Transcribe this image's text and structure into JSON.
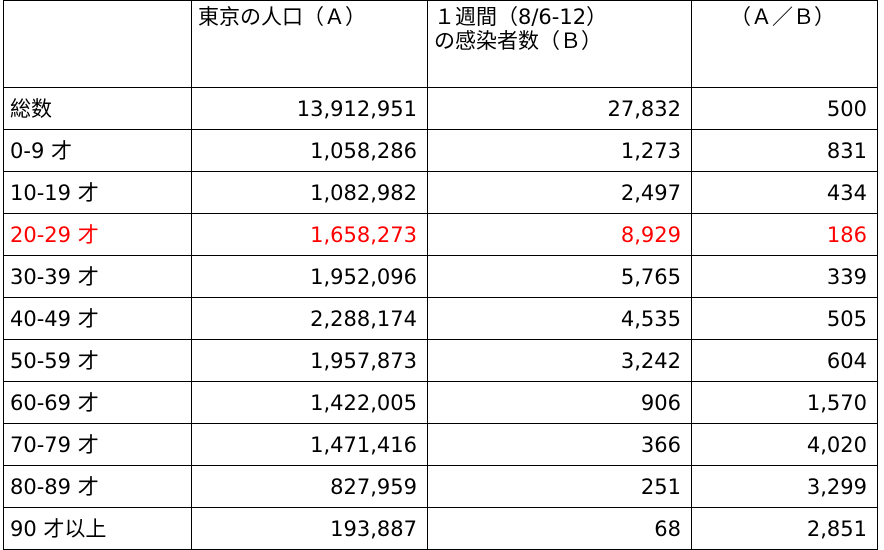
{
  "header": {
    "population": "東京の人口（Ａ）",
    "cases_line1": "１週間（8/6-12）",
    "cases_line2": "の感染者数（Ｂ）",
    "ratio": "（Ａ／Ｂ）"
  },
  "highlight_color": "#ff0000",
  "rows": [
    {
      "label": "総数",
      "population": "13,912,951",
      "cases": "27,832",
      "ratio": "500"
    },
    {
      "label": "0-9 才",
      "population": "1,058,286",
      "cases": "1,273",
      "ratio": "831"
    },
    {
      "label": "10-19 才",
      "population": "1,082,982",
      "cases": "2,497",
      "ratio": "434"
    },
    {
      "label": "20-29 才",
      "population": "1,658,273",
      "cases": "8,929",
      "ratio": "186"
    },
    {
      "label": "30-39 才",
      "population": "1,952,096",
      "cases": "5,765",
      "ratio": "339"
    },
    {
      "label": "40-49 才",
      "population": "2,288,174",
      "cases": "4,535",
      "ratio": "505"
    },
    {
      "label": "50-59 才",
      "population": "1,957,873",
      "cases": "3,242",
      "ratio": "604"
    },
    {
      "label": "60-69 才",
      "population": "1,422,005",
      "cases": "906",
      "ratio": "1,570"
    },
    {
      "label": "70-79 才",
      "population": "1,471,416",
      "cases": "366",
      "ratio": "4,020"
    },
    {
      "label": "80-89 才",
      "population": "827,959",
      "cases": "251",
      "ratio": "3,299"
    },
    {
      "label": "90 才以上",
      "population": "193,887",
      "cases": "68",
      "ratio": "2,851"
    }
  ]
}
